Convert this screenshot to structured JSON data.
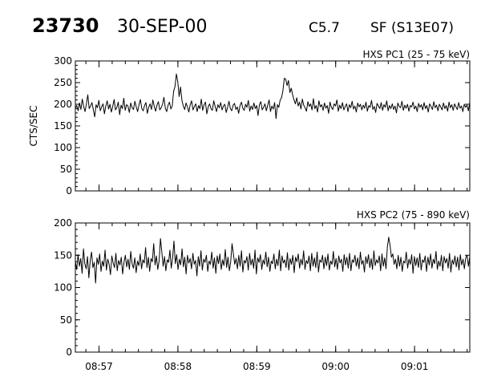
{
  "header": {
    "flare_id": "23730",
    "date": "30-SEP-00",
    "goes_class": "C5.7",
    "location": "SF (S13E07)"
  },
  "chart_data": [
    {
      "type": "line",
      "title": "HXS PC1 (25 - 75 keV)",
      "ylabel": "CTS/SEC",
      "xlabel": "",
      "ylim": [
        0,
        300
      ],
      "yticks": [
        0,
        50,
        100,
        150,
        200,
        250,
        300
      ],
      "xlim": [
        "08:56:42",
        "09:01:42"
      ],
      "xtick_labels": [
        "08:57",
        "08:58",
        "08:59",
        "09:00",
        "09:01"
      ],
      "series": [
        {
          "x_start": "08:56:42",
          "x_end": "09:01:42",
          "values": [
            191,
            197,
            185,
            203,
            188,
            212,
            195,
            183,
            201,
            222,
            190,
            196,
            204,
            187,
            171,
            199,
            192,
            209,
            185,
            194,
            201,
            178,
            196,
            208,
            189,
            200,
            182,
            195,
            211,
            187,
            193,
            205,
            176,
            198,
            190,
            214,
            186,
            199,
            196,
            181,
            203,
            192,
            188,
            207,
            194,
            183,
            199,
            211,
            190,
            185,
            197,
            204,
            179,
            193,
            201,
            188,
            210,
            195,
            184,
            198,
            206,
            187,
            192,
            200,
            216,
            191,
            183,
            198,
            205,
            189,
            196,
            230,
            241,
            270,
            252,
            218,
            240,
            209,
            196,
            188,
            203,
            194,
            182,
            199,
            208,
            187,
            195,
            201,
            183,
            197,
            190,
            212,
            186,
            199,
            205,
            178,
            194,
            201,
            190,
            186,
            208,
            195,
            183,
            199,
            192,
            204,
            187,
            196,
            200,
            181,
            193,
            207,
            190,
            185,
            198,
            202,
            188,
            194,
            179,
            197,
            205,
            191,
            186,
            200,
            193,
            209,
            184,
            196,
            188,
            203,
            190,
            197,
            174,
            199,
            206,
            187,
            193,
            201,
            185,
            198,
            210,
            183,
            196,
            189,
            204,
            167,
            199,
            193,
            210,
            215,
            232,
            260,
            258,
            243,
            255,
            227,
            237,
            222,
            210,
            201,
            215,
            196,
            205,
            189,
            212,
            198,
            192,
            184,
            206,
            195,
            201,
            187,
            213,
            190,
            197,
            182,
            208,
            194,
            199,
            186,
            203,
            191,
            197,
            179,
            205,
            193,
            188,
            201,
            196,
            210,
            184,
            198,
            190,
            204,
            187,
            195,
            201,
            183,
            199,
            192,
            207,
            189,
            196,
            182,
            203,
            194,
            200,
            187,
            198,
            191,
            205,
            184,
            197,
            193,
            209,
            188,
            195,
            181,
            202,
            196,
            190,
            204,
            186,
            199,
            193,
            208,
            185,
            197,
            190,
            201,
            188,
            196,
            180,
            203,
            195,
            192,
            207,
            186,
            198,
            191,
            200,
            184,
            197,
            194,
            205,
            189,
            196,
            183,
            202,
            193,
            199,
            187,
            204,
            190,
            197,
            182,
            201,
            195,
            188,
            206,
            192,
            198,
            185,
            200,
            194,
            187,
            203,
            190,
            197,
            184,
            205,
            192,
            199,
            186,
            201,
            194,
            188,
            204,
            191,
            196,
            183,
            200,
            193,
            198,
            185,
            205
          ]
        }
      ]
    },
    {
      "type": "line",
      "title": "HXS PC2 (75 - 890 keV)",
      "ylabel": "",
      "xlabel": "",
      "ylim": [
        0,
        200
      ],
      "yticks": [
        0,
        50,
        100,
        150,
        200
      ],
      "xlim": [
        "08:56:42",
        "09:01:42"
      ],
      "xtick_labels": [
        "08:57",
        "08:58",
        "08:59",
        "09:00",
        "09:01"
      ],
      "series": [
        {
          "x_start": "08:56:42",
          "x_end": "09:01:42",
          "values": [
            140,
            128,
            151,
            133,
            145,
            122,
            160,
            137,
            129,
            148,
            115,
            142,
            155,
            131,
            139,
            107,
            146,
            136,
            152,
            125,
            141,
            133,
            158,
            127,
            144,
            136,
            120,
            149,
            138,
            131,
            153,
            126,
            142,
            135,
            147,
            121,
            139,
            150,
            132,
            144,
            128,
            156,
            137,
            130,
            146,
            123,
            141,
            134,
            152,
            129,
            143,
            138,
            162,
            131,
            147,
            125,
            145,
            140,
            168,
            135,
            149,
            128,
            141,
            176,
            155,
            133,
            148,
            126,
            143,
            139,
            158,
            130,
            146,
            172,
            137,
            151,
            128,
            144,
            135,
            160,
            132,
            147,
            121,
            150,
            138,
            145,
            129,
            153,
            136,
            142,
            118,
            148,
            133,
            157,
            127,
            144,
            139,
            150,
            125,
            141,
            136,
            155,
            130,
            146,
            122,
            149,
            137,
            152,
            128,
            143,
            134,
            159,
            131,
            147,
            126,
            140,
            168,
            152,
            136,
            145,
            129,
            150,
            133,
            157,
            124,
            142,
            138,
            148,
            127,
            153,
            135,
            144,
            130,
            158,
            121,
            146,
            139,
            151,
            128,
            143,
            136,
            155,
            132,
            147,
            125,
            141,
            137,
            152,
            129,
            144,
            134,
            158,
            126,
            149,
            138,
            143,
            131,
            154,
            127,
            145,
            136,
            150,
            123,
            147,
            140,
            152,
            130,
            144,
            135,
            157,
            128,
            142,
            137,
            149,
            126,
            153,
            133,
            146,
            131,
            155,
            124,
            143,
            139,
            150,
            129,
            147,
            134,
            152,
            127,
            141,
            136,
            156,
            132,
            145,
            128,
            149,
            138,
            144,
            125,
            151,
            135,
            147,
            130,
            153,
            126,
            143,
            139,
            150,
            133,
            146,
            129,
            155,
            136,
            142,
            124,
            148,
            137,
            151,
            131,
            145,
            128,
            157,
            134,
            143,
            138,
            149,
            126,
            152,
            133,
            146,
            129,
            163,
            178,
            165,
            147,
            152,
            136,
            144,
            129,
            150,
            133,
            147,
            125,
            141,
            138,
            155,
            130,
            144,
            136,
            151,
            122,
            148,
            134,
            146,
            131,
            153,
            127,
            143,
            139,
            149,
            125,
            147,
            135,
            152,
            130,
            144,
            137,
            156,
            128,
            141,
            133,
            150,
            126,
            148,
            138,
            145,
            130,
            153,
            124,
            143,
            136,
            149,
            132,
            147,
            127,
            151,
            135,
            144,
            129,
            146,
            150,
            133,
            148
          ]
        }
      ]
    }
  ]
}
